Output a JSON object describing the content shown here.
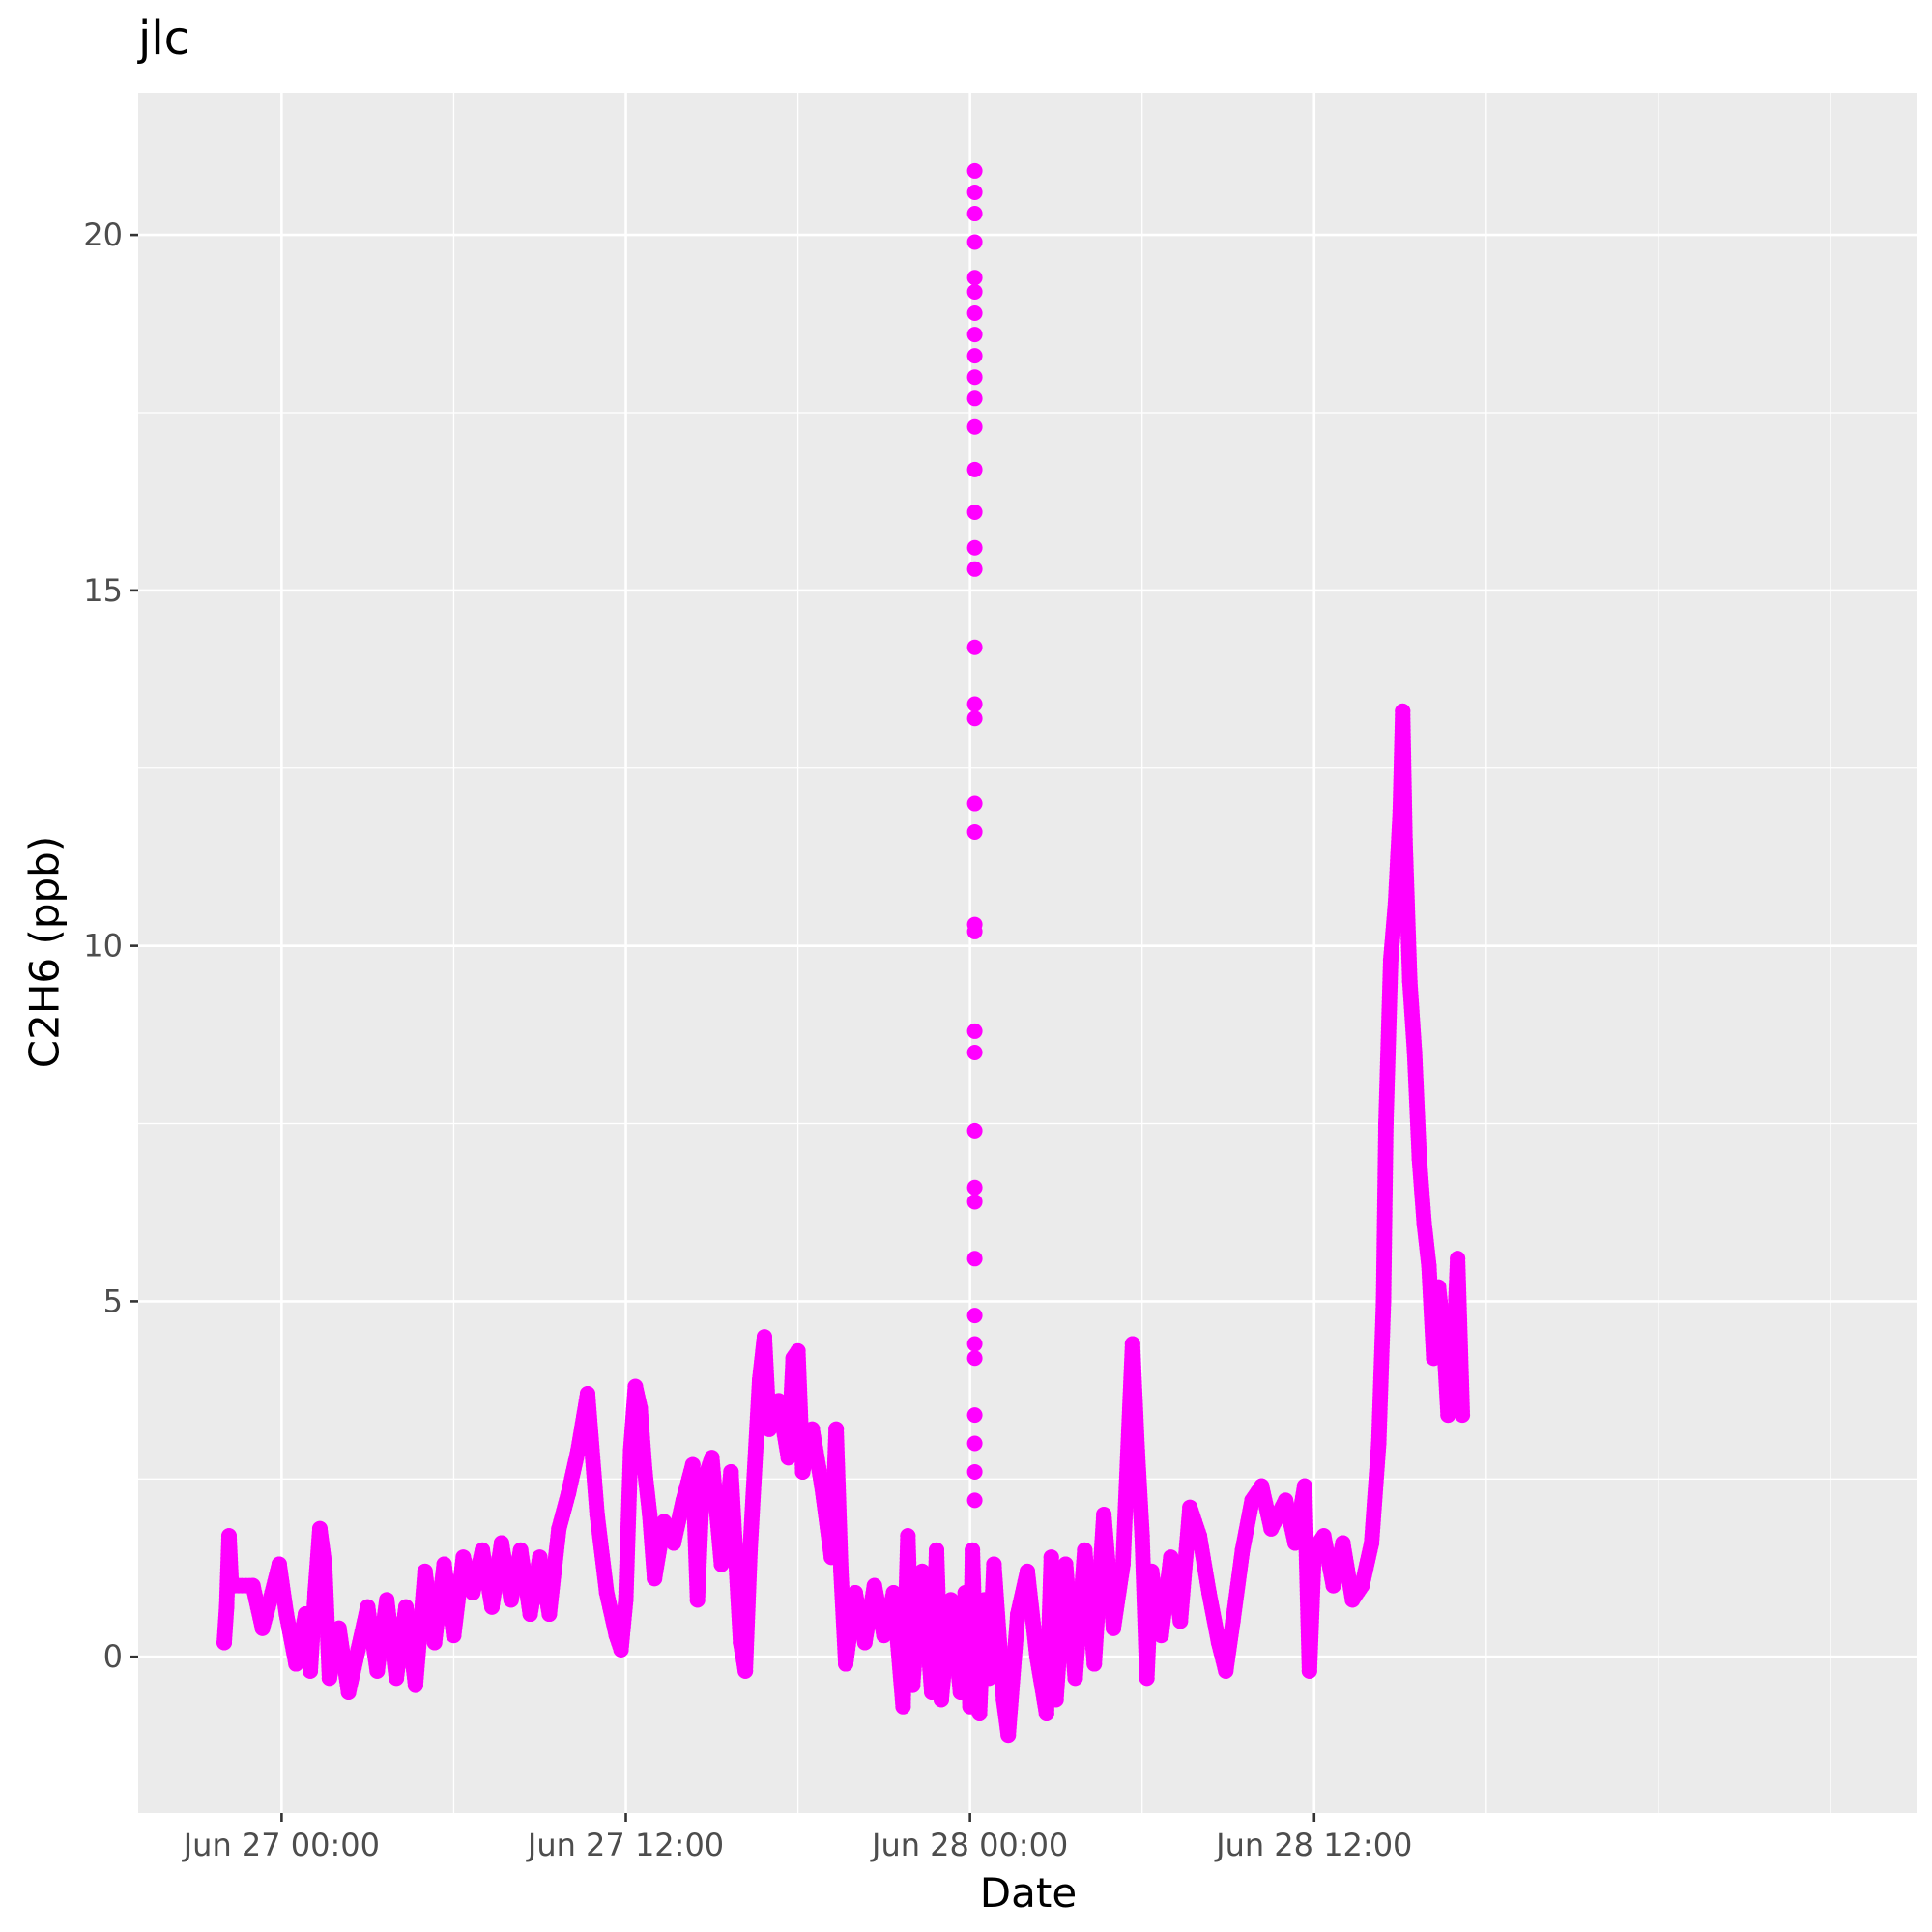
{
  "chart_data": {
    "type": "scatter",
    "title": "jlc",
    "xlabel": "Date",
    "ylabel": "C2H6 (ppb)",
    "grid": true,
    "colors": {
      "points": "#ff00ff",
      "panel": "#ebebeb",
      "gridline": "#ffffff"
    },
    "xlim": [
      "2021-06-26T19:00",
      "2021-06-29T09:00"
    ],
    "ylim": [
      -2.2,
      22.0
    ],
    "x_ticks": [
      {
        "value": "2021-06-27T00:00",
        "label": "Jun 27 00:00"
      },
      {
        "value": "2021-06-27T12:00",
        "label": "Jun 27 12:00"
      },
      {
        "value": "2021-06-28T00:00",
        "label": "Jun 28 00:00"
      },
      {
        "value": "2021-06-28T12:00",
        "label": "Jun 28 12:00"
      }
    ],
    "y_ticks": [
      {
        "value": 0,
        "label": "0"
      },
      {
        "value": 5,
        "label": "5"
      },
      {
        "value": 10,
        "label": "10"
      },
      {
        "value": 15,
        "label": "15"
      },
      {
        "value": 20,
        "label": "20"
      }
    ],
    "series": [
      {
        "points": [
          [
            "2021-06-26T22:00",
            0.2
          ],
          [
            "2021-06-26T22:05",
            0.7
          ],
          [
            "2021-06-26T22:10",
            1.7
          ],
          [
            "2021-06-26T22:15",
            1.0
          ],
          [
            "2021-06-26T23:00",
            1.0
          ],
          [
            "2021-06-26T23:20",
            0.4
          ],
          [
            "2021-06-26T23:40",
            0.9
          ],
          [
            "2021-06-26T23:55",
            1.3
          ],
          [
            "2021-06-27T00:10",
            0.6
          ],
          [
            "2021-06-27T00:30",
            -0.1
          ],
          [
            "2021-06-27T00:50",
            0.6
          ],
          [
            "2021-06-27T01:00",
            -0.2
          ],
          [
            "2021-06-27T01:10",
            0.9
          ],
          [
            "2021-06-27T01:20",
            1.8
          ],
          [
            "2021-06-27T01:30",
            1.3
          ],
          [
            "2021-06-27T01:40",
            -0.3
          ],
          [
            "2021-06-27T02:00",
            0.4
          ],
          [
            "2021-06-27T02:20",
            -0.5
          ],
          [
            "2021-06-27T02:40",
            0.1
          ],
          [
            "2021-06-27T03:00",
            0.7
          ],
          [
            "2021-06-27T03:20",
            -0.2
          ],
          [
            "2021-06-27T03:40",
            0.8
          ],
          [
            "2021-06-27T04:00",
            -0.3
          ],
          [
            "2021-06-27T04:20",
            0.7
          ],
          [
            "2021-06-27T04:40",
            -0.4
          ],
          [
            "2021-06-27T05:00",
            1.2
          ],
          [
            "2021-06-27T05:20",
            0.2
          ],
          [
            "2021-06-27T05:40",
            1.3
          ],
          [
            "2021-06-27T06:00",
            0.3
          ],
          [
            "2021-06-27T06:20",
            1.4
          ],
          [
            "2021-06-27T06:40",
            0.9
          ],
          [
            "2021-06-27T07:00",
            1.5
          ],
          [
            "2021-06-27T07:20",
            0.7
          ],
          [
            "2021-06-27T07:40",
            1.6
          ],
          [
            "2021-06-27T08:00",
            0.8
          ],
          [
            "2021-06-27T08:20",
            1.5
          ],
          [
            "2021-06-27T08:40",
            0.6
          ],
          [
            "2021-06-27T09:00",
            1.4
          ],
          [
            "2021-06-27T09:20",
            0.6
          ],
          [
            "2021-06-27T09:40",
            1.8
          ],
          [
            "2021-06-27T10:00",
            2.3
          ],
          [
            "2021-06-27T10:20",
            2.9
          ],
          [
            "2021-06-27T10:40",
            3.7
          ],
          [
            "2021-06-27T11:00",
            2.0
          ],
          [
            "2021-06-27T11:20",
            0.9
          ],
          [
            "2021-06-27T11:40",
            0.3
          ],
          [
            "2021-06-27T11:50",
            0.1
          ],
          [
            "2021-06-27T12:00",
            0.8
          ],
          [
            "2021-06-27T12:10",
            2.9
          ],
          [
            "2021-06-27T12:20",
            3.8
          ],
          [
            "2021-06-27T12:30",
            3.5
          ],
          [
            "2021-06-27T12:40",
            2.6
          ],
          [
            "2021-06-27T12:50",
            2.0
          ],
          [
            "2021-06-27T13:00",
            1.1
          ],
          [
            "2021-06-27T13:20",
            1.9
          ],
          [
            "2021-06-27T13:40",
            1.6
          ],
          [
            "2021-06-27T14:00",
            2.2
          ],
          [
            "2021-06-27T14:20",
            2.7
          ],
          [
            "2021-06-27T14:30",
            0.8
          ],
          [
            "2021-06-27T14:40",
            2.4
          ],
          [
            "2021-06-27T15:00",
            2.8
          ],
          [
            "2021-06-27T15:20",
            1.3
          ],
          [
            "2021-06-27T15:40",
            2.6
          ],
          [
            "2021-06-27T16:00",
            0.2
          ],
          [
            "2021-06-27T16:10",
            -0.2
          ],
          [
            "2021-06-27T16:20",
            1.5
          ],
          [
            "2021-06-27T16:40",
            3.9
          ],
          [
            "2021-06-27T16:50",
            4.5
          ],
          [
            "2021-06-27T17:00",
            3.2
          ],
          [
            "2021-06-27T17:20",
            3.6
          ],
          [
            "2021-06-27T17:40",
            2.8
          ],
          [
            "2021-06-27T17:50",
            4.2
          ],
          [
            "2021-06-27T18:00",
            4.3
          ],
          [
            "2021-06-27T18:10",
            2.6
          ],
          [
            "2021-06-27T18:30",
            3.2
          ],
          [
            "2021-06-27T18:50",
            2.4
          ],
          [
            "2021-06-27T19:10",
            1.4
          ],
          [
            "2021-06-27T19:20",
            3.2
          ],
          [
            "2021-06-27T19:30",
            1.2
          ],
          [
            "2021-06-27T19:40",
            -0.1
          ],
          [
            "2021-06-27T20:00",
            0.9
          ],
          [
            "2021-06-27T20:20",
            0.2
          ],
          [
            "2021-06-27T20:40",
            1.0
          ],
          [
            "2021-06-27T21:00",
            0.3
          ],
          [
            "2021-06-27T21:20",
            0.9
          ],
          [
            "2021-06-27T21:40",
            -0.7
          ],
          [
            "2021-06-27T21:50",
            1.7
          ],
          [
            "2021-06-27T22:00",
            -0.4
          ],
          [
            "2021-06-27T22:20",
            1.2
          ],
          [
            "2021-06-27T22:40",
            -0.5
          ],
          [
            "2021-06-27T22:50",
            1.5
          ],
          [
            "2021-06-27T23:00",
            -0.6
          ],
          [
            "2021-06-27T23:20",
            0.8
          ],
          [
            "2021-06-27T23:40",
            -0.5
          ],
          [
            "2021-06-27T23:50",
            0.9
          ],
          [
            "2021-06-28T00:00",
            -0.7
          ],
          [
            "2021-06-28T00:05",
            1.5
          ],
          [
            "2021-06-28T00:10",
            0.4
          ],
          [
            "2021-06-28T00:20",
            -0.8
          ],
          [
            "2021-06-28T00:30",
            0.8
          ],
          [
            "2021-06-28T00:40",
            -0.3
          ],
          [
            "2021-06-28T00:50",
            1.3
          ],
          [
            "2021-06-28T01:10",
            -0.6
          ],
          [
            "2021-06-28T01:20",
            -1.1
          ],
          [
            "2021-06-28T01:40",
            0.6
          ],
          [
            "2021-06-28T02:00",
            1.2
          ],
          [
            "2021-06-28T02:20",
            0.0
          ],
          [
            "2021-06-28T02:40",
            -0.8
          ],
          [
            "2021-06-28T02:50",
            1.4
          ],
          [
            "2021-06-28T03:00",
            -0.6
          ],
          [
            "2021-06-28T03:20",
            1.3
          ],
          [
            "2021-06-28T03:40",
            -0.3
          ],
          [
            "2021-06-28T04:00",
            1.5
          ],
          [
            "2021-06-28T04:20",
            -0.1
          ],
          [
            "2021-06-28T04:40",
            2.0
          ],
          [
            "2021-06-28T05:00",
            0.4
          ],
          [
            "2021-06-28T05:20",
            1.3
          ],
          [
            "2021-06-28T05:40",
            4.4
          ],
          [
            "2021-06-28T05:50",
            2.9
          ],
          [
            "2021-06-28T06:00",
            1.7
          ],
          [
            "2021-06-28T06:10",
            -0.3
          ],
          [
            "2021-06-28T06:20",
            1.2
          ],
          [
            "2021-06-28T06:40",
            0.3
          ],
          [
            "2021-06-28T07:00",
            1.4
          ],
          [
            "2021-06-28T07:20",
            0.5
          ],
          [
            "2021-06-28T07:40",
            2.1
          ],
          [
            "2021-06-28T08:00",
            1.7
          ],
          [
            "2021-06-28T08:20",
            0.9
          ],
          [
            "2021-06-28T08:40",
            0.2
          ],
          [
            "2021-06-28T08:55",
            -0.2
          ],
          [
            "2021-06-28T09:10",
            0.5
          ],
          [
            "2021-06-28T09:30",
            1.5
          ],
          [
            "2021-06-28T09:50",
            2.2
          ],
          [
            "2021-06-28T10:10",
            2.4
          ],
          [
            "2021-06-28T10:30",
            1.8
          ],
          [
            "2021-06-28T11:00",
            2.2
          ],
          [
            "2021-06-28T11:20",
            1.6
          ],
          [
            "2021-06-28T11:40",
            2.4
          ],
          [
            "2021-06-28T11:50",
            -0.2
          ],
          [
            "2021-06-28T12:00",
            1.5
          ],
          [
            "2021-06-28T12:20",
            1.7
          ],
          [
            "2021-06-28T12:40",
            1.0
          ],
          [
            "2021-06-28T13:00",
            1.6
          ],
          [
            "2021-06-28T13:20",
            0.8
          ],
          [
            "2021-06-28T13:40",
            1.0
          ],
          [
            "2021-06-28T14:00",
            1.6
          ],
          [
            "2021-06-28T14:15",
            3.0
          ],
          [
            "2021-06-28T14:25",
            5.0
          ],
          [
            "2021-06-28T14:30",
            7.5
          ],
          [
            "2021-06-28T14:40",
            9.8
          ],
          [
            "2021-06-28T14:50",
            10.6
          ],
          [
            "2021-06-28T15:00",
            11.9
          ],
          [
            "2021-06-28T15:05",
            13.3
          ],
          [
            "2021-06-28T15:10",
            11.5
          ],
          [
            "2021-06-28T15:20",
            9.5
          ],
          [
            "2021-06-28T15:30",
            8.5
          ],
          [
            "2021-06-28T15:40",
            7.0
          ],
          [
            "2021-06-28T15:50",
            6.1
          ],
          [
            "2021-06-28T16:00",
            5.5
          ],
          [
            "2021-06-28T16:10",
            4.2
          ],
          [
            "2021-06-28T16:20",
            5.2
          ],
          [
            "2021-06-28T16:30",
            4.6
          ],
          [
            "2021-06-28T16:40",
            3.4
          ],
          [
            "2021-06-28T16:50",
            4.0
          ],
          [
            "2021-06-28T17:00",
            5.6
          ],
          [
            "2021-06-28T17:10",
            3.4
          ],
          [
            "2021-06-28T00:10",
            2.2
          ],
          [
            "2021-06-28T00:10",
            2.6
          ],
          [
            "2021-06-28T00:10",
            3.0
          ],
          [
            "2021-06-28T00:10",
            3.4
          ],
          [
            "2021-06-28T00:10",
            4.2
          ],
          [
            "2021-06-28T00:10",
            4.4
          ],
          [
            "2021-06-28T00:10",
            4.8
          ],
          [
            "2021-06-28T00:10",
            5.6
          ],
          [
            "2021-06-28T00:10",
            6.4
          ],
          [
            "2021-06-28T00:10",
            6.6
          ],
          [
            "2021-06-28T00:10",
            7.4
          ],
          [
            "2021-06-28T00:10",
            8.5
          ],
          [
            "2021-06-28T00:10",
            8.8
          ],
          [
            "2021-06-28T00:10",
            10.2
          ],
          [
            "2021-06-28T00:10",
            10.3
          ],
          [
            "2021-06-28T00:10",
            11.6
          ],
          [
            "2021-06-28T00:10",
            12.0
          ],
          [
            "2021-06-28T00:10",
            13.2
          ],
          [
            "2021-06-28T00:10",
            13.4
          ],
          [
            "2021-06-28T00:10",
            14.2
          ],
          [
            "2021-06-28T00:10",
            15.3
          ],
          [
            "2021-06-28T00:10",
            15.6
          ],
          [
            "2021-06-28T00:10",
            16.1
          ],
          [
            "2021-06-28T00:10",
            16.7
          ],
          [
            "2021-06-28T00:10",
            17.3
          ],
          [
            "2021-06-28T00:10",
            17.7
          ],
          [
            "2021-06-28T00:10",
            18.0
          ],
          [
            "2021-06-28T00:10",
            18.3
          ],
          [
            "2021-06-28T00:10",
            18.6
          ],
          [
            "2021-06-28T00:10",
            18.9
          ],
          [
            "2021-06-28T00:10",
            19.2
          ],
          [
            "2021-06-28T00:10",
            19.4
          ],
          [
            "2021-06-28T00:10",
            19.9
          ],
          [
            "2021-06-28T00:10",
            20.3
          ],
          [
            "2021-06-28T00:10",
            20.6
          ],
          [
            "2021-06-28T00:10",
            20.9
          ]
        ]
      }
    ]
  }
}
